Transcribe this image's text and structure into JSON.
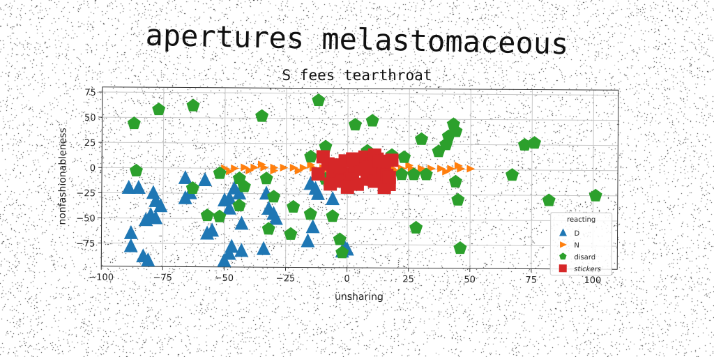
{
  "title": "apertures melastomaceous",
  "chart_data": {
    "type": "scatter",
    "title": "S fees tearthroat",
    "xlabel": "unsharing",
    "ylabel": "nonfashionableness",
    "xlim": [
      -100,
      110
    ],
    "ylim": [
      -98,
      80
    ],
    "xticks": [
      -100,
      -75,
      -50,
      -25,
      0,
      25,
      50,
      75,
      100
    ],
    "yticks": [
      75,
      50,
      25,
      0,
      -25,
      -50,
      -75
    ],
    "grid": true,
    "legend": {
      "title": "reacting",
      "position": "lower-right"
    },
    "series": [
      {
        "name": "D",
        "marker": "triangle",
        "color": "#1f77b4",
        "points": [
          [
            -89,
            -20
          ],
          [
            -85,
            -20
          ],
          [
            -88,
            -65
          ],
          [
            -88,
            -78
          ],
          [
            -83,
            -88
          ],
          [
            -81,
            -92
          ],
          [
            -79,
            -25
          ],
          [
            -78,
            -33
          ],
          [
            -76,
            -38
          ],
          [
            -80,
            -47
          ],
          [
            -82,
            -52
          ],
          [
            -78,
            -50
          ],
          [
            -66,
            -10
          ],
          [
            -64,
            -25
          ],
          [
            -66,
            -30
          ],
          [
            -58,
            -12
          ],
          [
            -55,
            -62
          ],
          [
            -57,
            -65
          ],
          [
            -50,
            -32
          ],
          [
            -48,
            -30
          ],
          [
            -48,
            -40
          ],
          [
            -46,
            -20
          ],
          [
            -44,
            -25
          ],
          [
            -47,
            -78
          ],
          [
            -48,
            -85
          ],
          [
            -50,
            -92
          ],
          [
            -43,
            -55
          ],
          [
            -43,
            -82
          ],
          [
            -34,
            -80
          ],
          [
            -33,
            -25
          ],
          [
            -32,
            -40
          ],
          [
            -30,
            -45
          ],
          [
            -29,
            -50
          ],
          [
            -16,
            -72
          ],
          [
            -15,
            -15
          ],
          [
            -13,
            -20
          ],
          [
            -12,
            -25
          ],
          [
            -14,
            -58
          ],
          [
            -6,
            -30
          ],
          [
            -1,
            -78
          ],
          [
            0,
            -80
          ],
          [
            -2,
            -82
          ]
        ]
      },
      {
        "name": "N",
        "marker": "triangle-right",
        "color": "#ff7f0e",
        "points": [
          [
            -50,
            0
          ],
          [
            -46,
            0
          ],
          [
            -42,
            1
          ],
          [
            -38,
            1
          ],
          [
            -34,
            1
          ],
          [
            -30,
            1
          ],
          [
            -26,
            1
          ],
          [
            -22,
            1
          ],
          [
            -18,
            1
          ],
          [
            -14,
            1
          ],
          [
            -10,
            1
          ],
          [
            -6,
            1
          ],
          [
            -2,
            1
          ],
          [
            2,
            1
          ],
          [
            6,
            1
          ],
          [
            10,
            1
          ],
          [
            14,
            1
          ],
          [
            18,
            1
          ],
          [
            22,
            1
          ],
          [
            26,
            1
          ],
          [
            30,
            1
          ],
          [
            34,
            1
          ],
          [
            38,
            1
          ],
          [
            42,
            1
          ],
          [
            46,
            1
          ],
          [
            50,
            1
          ],
          [
            -48,
            -3
          ],
          [
            -40,
            -2
          ],
          [
            -30,
            -2
          ],
          [
            -20,
            -2
          ],
          [
            -10,
            -2
          ],
          [
            0,
            -2
          ],
          [
            10,
            -2
          ],
          [
            20,
            -2
          ],
          [
            30,
            -2
          ],
          [
            40,
            -2
          ],
          [
            -35,
            4
          ],
          [
            -15,
            4
          ],
          [
            5,
            4
          ],
          [
            25,
            4
          ],
          [
            45,
            4
          ]
        ]
      },
      {
        "name": "disard",
        "marker": "pentagon",
        "color": "#2ca02c",
        "points": [
          [
            -87,
            44
          ],
          [
            -77,
            58
          ],
          [
            -63,
            62
          ],
          [
            -35,
            52
          ],
          [
            -12,
            68
          ],
          [
            -86,
            -3
          ],
          [
            -63,
            -20
          ],
          [
            -57,
            -47
          ],
          [
            -52,
            -48
          ],
          [
            -52,
            -5
          ],
          [
            -44,
            -10
          ],
          [
            -42,
            -18
          ],
          [
            -44,
            -37
          ],
          [
            -33,
            -10
          ],
          [
            -30,
            -28
          ],
          [
            -32,
            -60
          ],
          [
            -22,
            -38
          ],
          [
            -23,
            -65
          ],
          [
            -15,
            12
          ],
          [
            -15,
            -45
          ],
          [
            -9,
            22
          ],
          [
            -9,
            -10
          ],
          [
            -6,
            -47
          ],
          [
            -3,
            -70
          ],
          [
            -2,
            -83
          ],
          [
            3,
            44
          ],
          [
            8,
            18
          ],
          [
            10,
            48
          ],
          [
            18,
            14
          ],
          [
            22,
            -5
          ],
          [
            23,
            12
          ],
          [
            27,
            -5
          ],
          [
            28,
            -58
          ],
          [
            30,
            30
          ],
          [
            32,
            -5
          ],
          [
            37,
            18
          ],
          [
            40,
            25
          ],
          [
            41,
            33
          ],
          [
            43,
            45
          ],
          [
            44,
            38
          ],
          [
            44,
            -12
          ],
          [
            45,
            -30
          ],
          [
            46,
            -78
          ],
          [
            67,
            -5
          ],
          [
            72,
            25
          ],
          [
            76,
            27
          ],
          [
            82,
            -30
          ],
          [
            101,
            -25
          ]
        ]
      },
      {
        "name": "stickers",
        "marker": "square",
        "color": "#d62728",
        "points": [
          [
            -10,
            12
          ],
          [
            -8,
            5
          ],
          [
            -6,
            -3
          ],
          [
            -4,
            -8
          ],
          [
            -3,
            2
          ],
          [
            -1,
            8
          ],
          [
            -2,
            -12
          ],
          [
            1,
            -10
          ],
          [
            2,
            -5
          ],
          [
            3,
            3
          ],
          [
            5,
            8
          ],
          [
            4,
            -15
          ],
          [
            7,
            12
          ],
          [
            8,
            -4
          ],
          [
            9,
            -10
          ],
          [
            10,
            5
          ],
          [
            11,
            -12
          ],
          [
            12,
            10
          ],
          [
            13,
            -3
          ],
          [
            14,
            2
          ],
          [
            15,
            6
          ],
          [
            16,
            -6
          ],
          [
            17,
            -15
          ],
          [
            18,
            9
          ],
          [
            -12,
            -5
          ],
          [
            -7,
            -15
          ],
          [
            0,
            -18
          ],
          [
            6,
            0
          ],
          [
            11,
            14
          ],
          [
            15,
            -18
          ],
          [
            -5,
            4
          ],
          [
            2,
            10
          ],
          [
            9,
            2
          ],
          [
            13,
            8
          ],
          [
            17,
            -8
          ]
        ]
      }
    ]
  }
}
